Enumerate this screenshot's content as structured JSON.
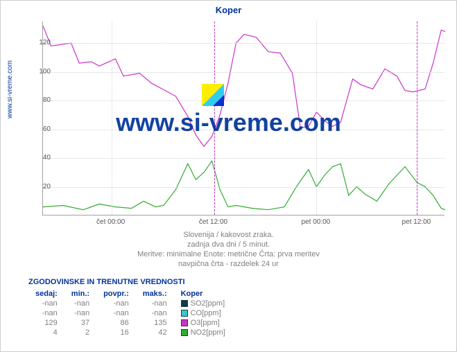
{
  "title": "Koper",
  "left_label": "www.si-vreme.com",
  "watermark": "www.si-vreme.com",
  "ylim": [
    0,
    135
  ],
  "yticks": [
    20,
    40,
    60,
    80,
    100,
    120
  ],
  "xticks": [
    "čet 00:00",
    "čet 12:00",
    "pet 00:00",
    "pet 12:00"
  ],
  "xtick_positions": [
    0.17,
    0.425,
    0.68,
    0.93
  ],
  "marker_positions": [
    0.425,
    0.93
  ],
  "grid_color": "#d0d0d0",
  "axis_color": "#a0a0a0",
  "marker_color": "#cc33cc",
  "subtitles": [
    "Slovenija / kakovost zraka.",
    "zadnja dva dni / 5 minut.",
    "Meritve: minimalne  Enote: metrične  Črta: prva meritev",
    "navpična črta - razdelek 24 ur"
  ],
  "series": {
    "o3": {
      "color": "#cc33cc",
      "points": [
        [
          0.0,
          132
        ],
        [
          0.02,
          118
        ],
        [
          0.07,
          120
        ],
        [
          0.09,
          106
        ],
        [
          0.12,
          107
        ],
        [
          0.14,
          104
        ],
        [
          0.18,
          109
        ],
        [
          0.2,
          97
        ],
        [
          0.24,
          99
        ],
        [
          0.27,
          92
        ],
        [
          0.31,
          86
        ],
        [
          0.33,
          83
        ],
        [
          0.36,
          69
        ],
        [
          0.38,
          56
        ],
        [
          0.4,
          48
        ],
        [
          0.42,
          55
        ],
        [
          0.44,
          70
        ],
        [
          0.46,
          92
        ],
        [
          0.48,
          120
        ],
        [
          0.5,
          126
        ],
        [
          0.53,
          124
        ],
        [
          0.56,
          114
        ],
        [
          0.59,
          113
        ],
        [
          0.62,
          99
        ],
        [
          0.64,
          61
        ],
        [
          0.66,
          62
        ],
        [
          0.68,
          72
        ],
        [
          0.7,
          66
        ],
        [
          0.72,
          62
        ],
        [
          0.74,
          65
        ],
        [
          0.77,
          95
        ],
        [
          0.79,
          91
        ],
        [
          0.82,
          88
        ],
        [
          0.85,
          102
        ],
        [
          0.88,
          97
        ],
        [
          0.9,
          87
        ],
        [
          0.92,
          86
        ],
        [
          0.95,
          88
        ],
        [
          0.97,
          106
        ],
        [
          0.99,
          129
        ],
        [
          1.0,
          128
        ]
      ]
    },
    "no2": {
      "color": "#33aa33",
      "points": [
        [
          0.0,
          6
        ],
        [
          0.05,
          7
        ],
        [
          0.1,
          4
        ],
        [
          0.14,
          8
        ],
        [
          0.18,
          6
        ],
        [
          0.22,
          5
        ],
        [
          0.25,
          10
        ],
        [
          0.28,
          6
        ],
        [
          0.3,
          7
        ],
        [
          0.33,
          18
        ],
        [
          0.36,
          36
        ],
        [
          0.38,
          25
        ],
        [
          0.4,
          30
        ],
        [
          0.42,
          38
        ],
        [
          0.44,
          18
        ],
        [
          0.46,
          6
        ],
        [
          0.48,
          7
        ],
        [
          0.52,
          5
        ],
        [
          0.56,
          4
        ],
        [
          0.6,
          6
        ],
        [
          0.63,
          20
        ],
        [
          0.66,
          32
        ],
        [
          0.68,
          20
        ],
        [
          0.7,
          28
        ],
        [
          0.72,
          34
        ],
        [
          0.74,
          36
        ],
        [
          0.76,
          14
        ],
        [
          0.78,
          20
        ],
        [
          0.8,
          15
        ],
        [
          0.83,
          10
        ],
        [
          0.86,
          22
        ],
        [
          0.88,
          28
        ],
        [
          0.9,
          34
        ],
        [
          0.93,
          23
        ],
        [
          0.95,
          20
        ],
        [
          0.97,
          14
        ],
        [
          0.99,
          5
        ],
        [
          1.0,
          4
        ]
      ]
    }
  },
  "table": {
    "title": "ZGODOVINSKE IN TRENUTNE VREDNOSTI",
    "headers": [
      "sedaj:",
      "min.:",
      "povpr.:",
      "maks.:",
      "Koper"
    ],
    "rows": [
      {
        "sedaj": "-nan",
        "min": "-nan",
        "povpr": "-nan",
        "maks": "-nan",
        "swatch": "#0b3d4d",
        "label": "SO2[ppm]"
      },
      {
        "sedaj": "-nan",
        "min": "-nan",
        "povpr": "-nan",
        "maks": "-nan",
        "swatch": "#33cccc",
        "label": "CO[ppm]"
      },
      {
        "sedaj": "129",
        "min": "37",
        "povpr": "86",
        "maks": "135",
        "swatch": "#cc33cc",
        "label": "O3[ppm]"
      },
      {
        "sedaj": "4",
        "min": "2",
        "povpr": "16",
        "maks": "42",
        "swatch": "#33aa33",
        "label": "NO2[ppm]"
      }
    ]
  },
  "logo_colors": {
    "tri1": "#ffee00",
    "tri2": "#33ccee",
    "tri3": "#0033cc"
  }
}
